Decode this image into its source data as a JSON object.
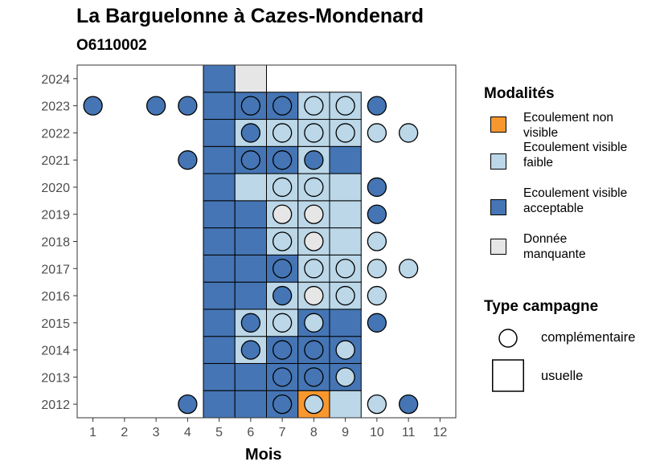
{
  "chart_data": {
    "type": "heatmap",
    "title": "La Barguelonne à Cazes-Mondenard",
    "subtitle": "O6110002",
    "xlabel": "Mois",
    "ylabel": "",
    "x_ticks": [
      "1",
      "2",
      "3",
      "4",
      "5",
      "6",
      "7",
      "8",
      "9",
      "10",
      "11",
      "12"
    ],
    "y_ticks": [
      "2012",
      "2013",
      "2014",
      "2015",
      "2016",
      "2017",
      "2018",
      "2019",
      "2020",
      "2021",
      "2022",
      "2023",
      "2024"
    ],
    "xlim": [
      0.5,
      12.5
    ],
    "ylim": [
      2011.5,
      2024.5
    ],
    "legend_modalites": {
      "title": "Modalités",
      "items": [
        {
          "key": "nv",
          "label": "Ecoulement non visible",
          "color": "#F9972F"
        },
        {
          "key": "vf",
          "label": "Ecoulement visible faible",
          "color": "#BBD7E8"
        },
        {
          "key": "va",
          "label": "Ecoulement visible acceptable",
          "color": "#4575B4"
        },
        {
          "key": "dm",
          "label": "Donnée manquante",
          "color": "#E6E6E6"
        }
      ]
    },
    "legend_campagne": {
      "title": "Type campagne",
      "items": [
        {
          "key": "circle",
          "label": "complémentaire"
        },
        {
          "key": "square",
          "label": "usuelle"
        }
      ]
    },
    "usuelle": [
      {
        "year": 2012,
        "months": [
          5,
          6,
          7,
          8,
          9
        ],
        "values": [
          "va",
          "va",
          "va",
          "nv",
          "vf"
        ]
      },
      {
        "year": 2013,
        "months": [
          5,
          6,
          7,
          8,
          9
        ],
        "values": [
          "va",
          "va",
          "va",
          "va",
          "va"
        ]
      },
      {
        "year": 2014,
        "months": [
          5,
          6,
          7,
          8,
          9
        ],
        "values": [
          "va",
          "vf",
          "va",
          "va",
          "va"
        ]
      },
      {
        "year": 2015,
        "months": [
          5,
          6,
          7,
          8,
          9
        ],
        "values": [
          "va",
          "vf",
          "vf",
          "va",
          "va"
        ]
      },
      {
        "year": 2016,
        "months": [
          5,
          6,
          7,
          8,
          9
        ],
        "values": [
          "va",
          "va",
          "vf",
          "vf",
          "vf"
        ]
      },
      {
        "year": 2017,
        "months": [
          5,
          6,
          7,
          8,
          9
        ],
        "values": [
          "va",
          "va",
          "va",
          "vf",
          "vf"
        ]
      },
      {
        "year": 2018,
        "months": [
          5,
          6,
          7,
          8,
          9
        ],
        "values": [
          "va",
          "va",
          "vf",
          "vf",
          "vf"
        ]
      },
      {
        "year": 2019,
        "months": [
          5,
          6,
          7,
          8,
          9
        ],
        "values": [
          "va",
          "va",
          "vf",
          "vf",
          "vf"
        ]
      },
      {
        "year": 2020,
        "months": [
          5,
          6,
          7,
          8,
          9
        ],
        "values": [
          "va",
          "vf",
          "vf",
          "vf",
          "vf"
        ]
      },
      {
        "year": 2021,
        "months": [
          5,
          6,
          7,
          8,
          9
        ],
        "values": [
          "va",
          "va",
          "va",
          "vf",
          "va"
        ]
      },
      {
        "year": 2022,
        "months": [
          5,
          6,
          7,
          8,
          9
        ],
        "values": [
          "va",
          "vf",
          "vf",
          "vf",
          "vf"
        ]
      },
      {
        "year": 2023,
        "months": [
          5,
          6,
          7,
          8,
          9
        ],
        "values": [
          "va",
          "va",
          "va",
          "vf",
          "vf"
        ]
      },
      {
        "year": 2024,
        "months": [
          5,
          6
        ],
        "values": [
          "va",
          "dm"
        ]
      }
    ],
    "complementaire": [
      {
        "year": 2012,
        "points": [
          [
            4,
            "va"
          ],
          [
            7,
            "va"
          ],
          [
            8,
            "vf"
          ],
          [
            10,
            "vf"
          ],
          [
            11,
            "va"
          ]
        ]
      },
      {
        "year": 2013,
        "points": [
          [
            7,
            "va"
          ],
          [
            8,
            "va"
          ],
          [
            9,
            "vf"
          ]
        ]
      },
      {
        "year": 2014,
        "points": [
          [
            6,
            "va"
          ],
          [
            7,
            "va"
          ],
          [
            8,
            "va"
          ],
          [
            9,
            "vf"
          ]
        ]
      },
      {
        "year": 2015,
        "points": [
          [
            6,
            "va"
          ],
          [
            7,
            "vf"
          ],
          [
            8,
            "vf"
          ],
          [
            10,
            "va"
          ]
        ]
      },
      {
        "year": 2016,
        "points": [
          [
            7,
            "va"
          ],
          [
            8,
            "dm"
          ],
          [
            9,
            "vf"
          ],
          [
            10,
            "vf"
          ]
        ]
      },
      {
        "year": 2017,
        "points": [
          [
            7,
            "va"
          ],
          [
            8,
            "vf"
          ],
          [
            9,
            "vf"
          ],
          [
            10,
            "vf"
          ],
          [
            11,
            "vf"
          ]
        ]
      },
      {
        "year": 2018,
        "points": [
          [
            7,
            "vf"
          ],
          [
            8,
            "dm"
          ],
          [
            10,
            "vf"
          ]
        ]
      },
      {
        "year": 2019,
        "points": [
          [
            7,
            "dm"
          ],
          [
            8,
            "dm"
          ],
          [
            10,
            "va"
          ]
        ]
      },
      {
        "year": 2020,
        "points": [
          [
            7,
            "vf"
          ],
          [
            8,
            "vf"
          ],
          [
            10,
            "va"
          ]
        ]
      },
      {
        "year": 2021,
        "points": [
          [
            4,
            "va"
          ],
          [
            6,
            "va"
          ],
          [
            7,
            "va"
          ],
          [
            8,
            "va"
          ]
        ]
      },
      {
        "year": 2022,
        "points": [
          [
            6,
            "va"
          ],
          [
            7,
            "vf"
          ],
          [
            8,
            "vf"
          ],
          [
            9,
            "vf"
          ],
          [
            10,
            "vf"
          ],
          [
            11,
            "vf"
          ]
        ]
      },
      {
        "year": 2023,
        "points": [
          [
            1,
            "va"
          ],
          [
            3,
            "va"
          ],
          [
            4,
            "va"
          ],
          [
            6,
            "va"
          ],
          [
            7,
            "va"
          ],
          [
            8,
            "vf"
          ],
          [
            9,
            "vf"
          ],
          [
            10,
            "va"
          ]
        ]
      }
    ]
  }
}
